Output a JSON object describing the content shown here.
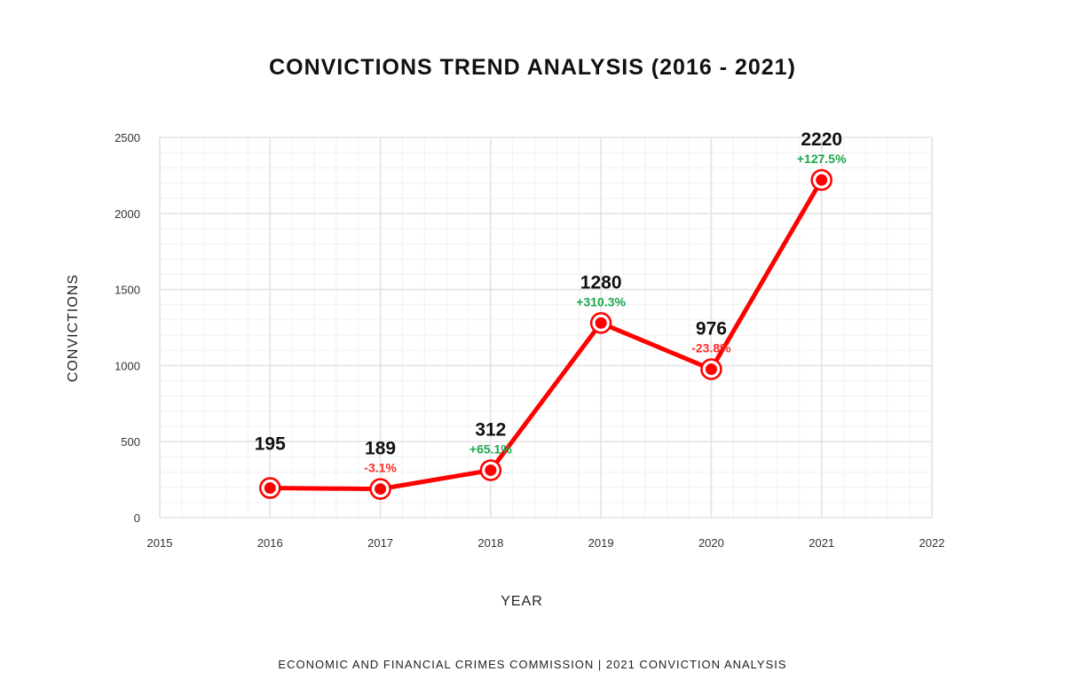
{
  "chart_data": {
    "type": "line",
    "title": "CONVICTIONS TREND ANALYSIS (2016 - 2021)",
    "xlabel": "YEAR",
    "ylabel": "CONVICTIONS",
    "xlim": [
      2015,
      2022
    ],
    "ylim": [
      0,
      2500
    ],
    "x_ticks": [
      "2015",
      "2016",
      "2017",
      "2018",
      "2019",
      "2020",
      "2021",
      "2022"
    ],
    "y_ticks": [
      "0",
      "500",
      "1000",
      "1500",
      "2000",
      "2500"
    ],
    "grid": true,
    "legend": "none",
    "series": [
      {
        "x": [
          2016,
          2017,
          2018,
          2019,
          2020,
          2021
        ],
        "values": [
          195,
          189,
          312,
          1280,
          976,
          2220
        ],
        "color": "#ff0000"
      }
    ],
    "value_labels": [
      "195",
      "189",
      "312",
      "1280",
      "976",
      "2220"
    ],
    "change_labels": [
      "",
      "-3.1%",
      "+65.1%",
      "+310.3%",
      "-23.8%",
      "+127.5%"
    ],
    "colors": {
      "line": "#ff0000",
      "increase": "#1aa64a",
      "decrease": "#ff2a2a",
      "grid_major": "#e3e3e3",
      "grid_minor": "#f1f1f1"
    }
  },
  "footer": "ECONOMIC AND FINANCIAL CRIMES COMMISSION | 2021 CONVICTION ANALYSIS"
}
